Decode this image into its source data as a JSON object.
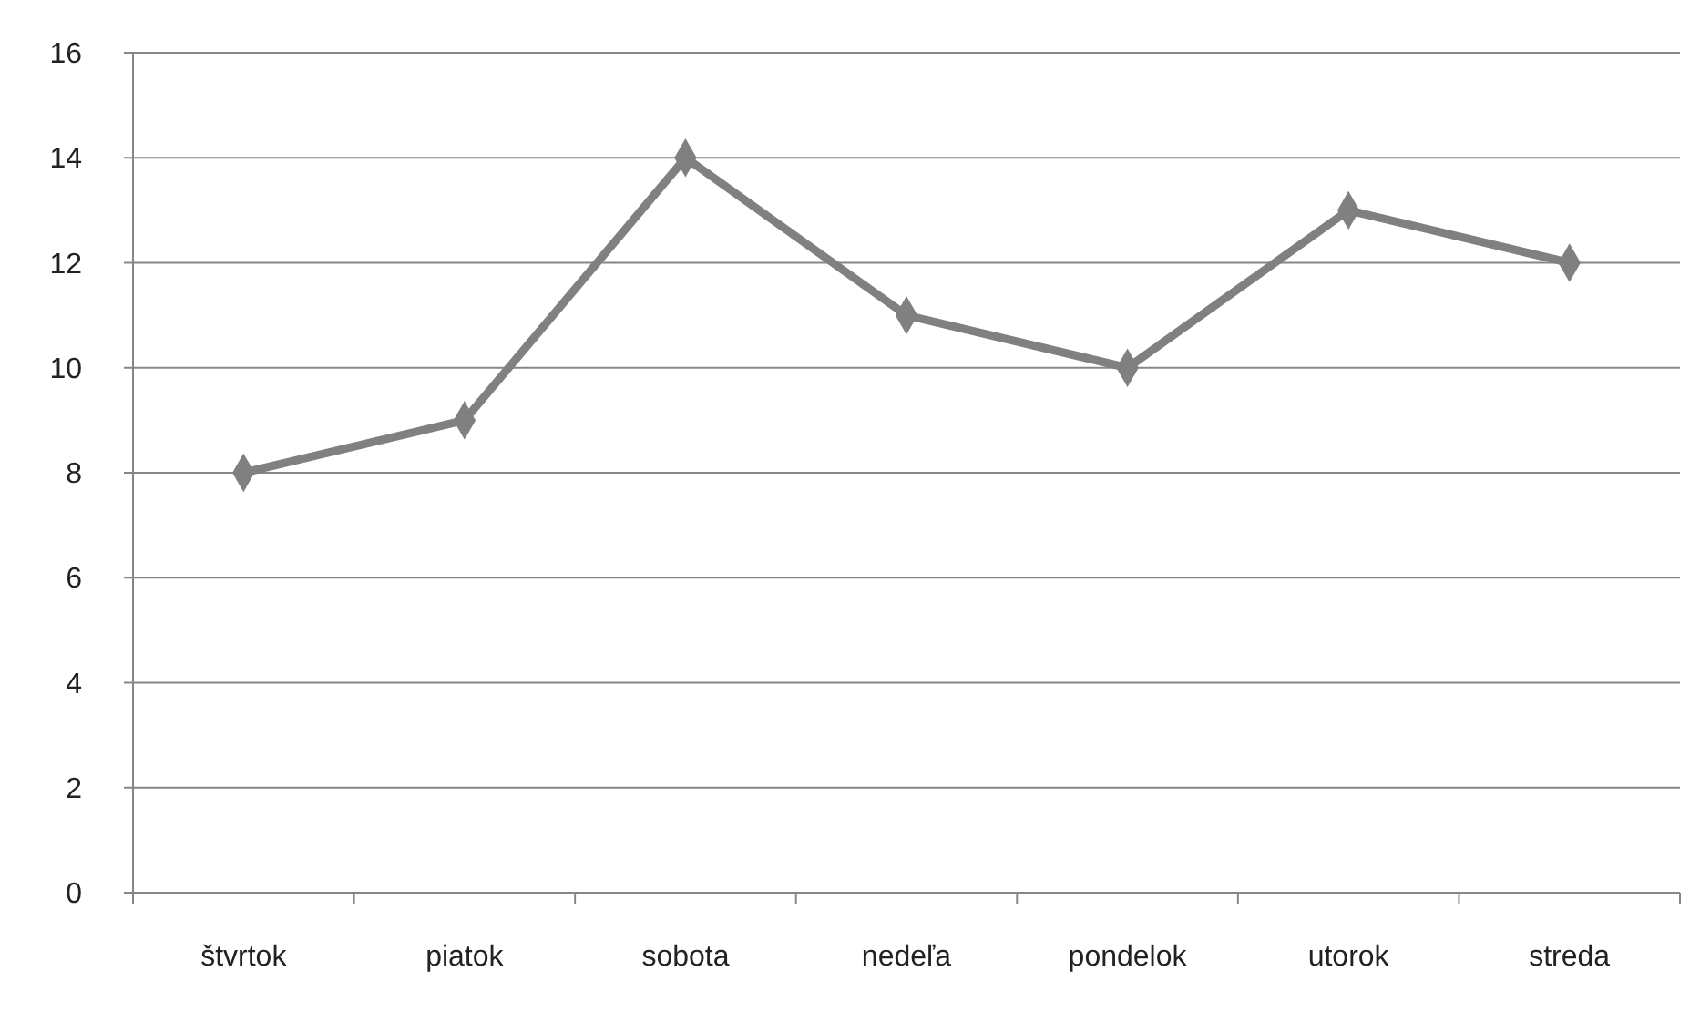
{
  "chart_data": {
    "type": "line",
    "categories": [
      "štvrtok",
      "piatok",
      "sobota",
      "nedeľa",
      "pondelok",
      "utorok",
      "streda"
    ],
    "series": [
      {
        "color": "#808080",
        "values": [
          8,
          9,
          14,
          11,
          10,
          13,
          12
        ]
      }
    ],
    "ylim": [
      0,
      16
    ],
    "yticks": [
      0,
      2,
      4,
      6,
      8,
      10,
      12,
      14,
      16
    ],
    "grid": "y",
    "marker": "diamond",
    "line_style": "solid"
  }
}
